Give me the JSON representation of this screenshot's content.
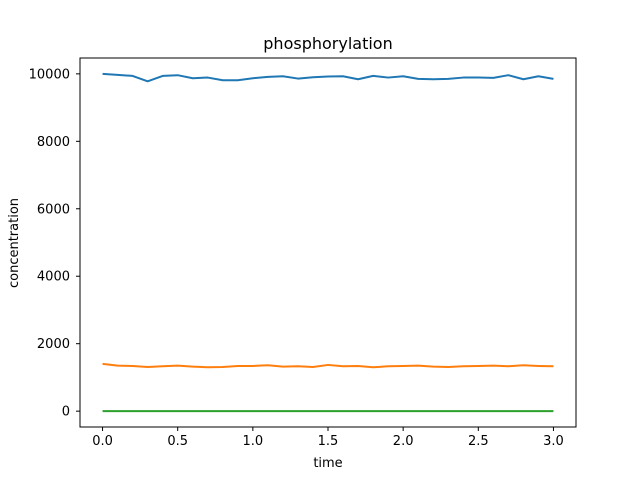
{
  "chart_data": {
    "type": "line",
    "title": "phosphorylation",
    "xlabel": "time",
    "ylabel": "concentration",
    "xlim": [
      -0.15,
      3.15
    ],
    "ylim": [
      -470,
      10470
    ],
    "xticks": [
      0.0,
      0.5,
      1.0,
      1.5,
      2.0,
      2.5,
      3.0
    ],
    "xtick_labels": [
      "0.0",
      "0.5",
      "1.0",
      "1.5",
      "2.0",
      "2.5",
      "3.0"
    ],
    "yticks": [
      0,
      2000,
      4000,
      6000,
      8000,
      10000
    ],
    "ytick_labels": [
      "0",
      "2000",
      "4000",
      "6000",
      "8000",
      "10000"
    ],
    "grid": false,
    "x": [
      0.0,
      0.1,
      0.2,
      0.3,
      0.4,
      0.5,
      0.6,
      0.7,
      0.8,
      0.9,
      1.0,
      1.1,
      1.2,
      1.3,
      1.4,
      1.5,
      1.6,
      1.7,
      1.8,
      1.9,
      2.0,
      2.1,
      2.2,
      2.3,
      2.4,
      2.5,
      2.6,
      2.7,
      2.8,
      2.9,
      3.0
    ],
    "series": [
      {
        "color": "#1f77b4",
        "values": [
          10000,
          9970,
          9940,
          9780,
          9940,
          9960,
          9870,
          9890,
          9810,
          9810,
          9870,
          9910,
          9930,
          9860,
          9900,
          9920,
          9930,
          9840,
          9940,
          9890,
          9930,
          9850,
          9840,
          9850,
          9890,
          9890,
          9880,
          9960,
          9840,
          9930,
          9850
        ]
      },
      {
        "color": "#ff7f0e",
        "values": [
          1400,
          1350,
          1340,
          1310,
          1330,
          1350,
          1320,
          1300,
          1310,
          1340,
          1340,
          1360,
          1320,
          1330,
          1310,
          1370,
          1330,
          1340,
          1300,
          1330,
          1340,
          1350,
          1320,
          1310,
          1330,
          1340,
          1350,
          1330,
          1360,
          1340,
          1330
        ]
      },
      {
        "color": "#2ca02c",
        "values": [
          0,
          0,
          0,
          0,
          0,
          0,
          0,
          0,
          0,
          0,
          0,
          0,
          0,
          0,
          0,
          0,
          0,
          0,
          0,
          0,
          0,
          0,
          0,
          0,
          0,
          0,
          0,
          0,
          0,
          0,
          0
        ]
      }
    ]
  }
}
